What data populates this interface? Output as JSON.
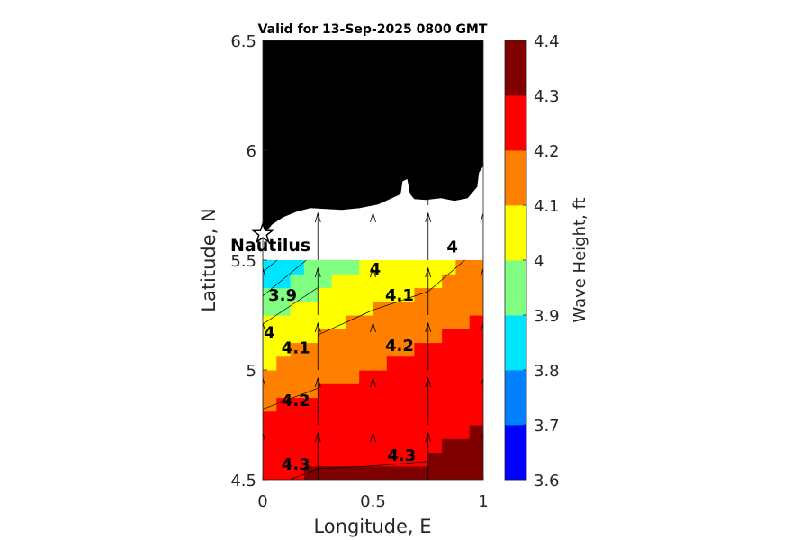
{
  "chart_data": {
    "type": "contour-map",
    "title": "Valid for 13-Sep-2025 0800 GMT",
    "xlabel": "Longitude, E",
    "ylabel": "Latitude, N",
    "xlim": [
      0,
      1
    ],
    "ylim": [
      4.5,
      6.5
    ],
    "x_ticks": [
      "0",
      "0.5",
      "1"
    ],
    "y_ticks": [
      "4.5",
      "5",
      "5.5",
      "6",
      "6.5"
    ],
    "colorbar": {
      "label": "Wave Height, ft",
      "levels": [
        3.6,
        3.7,
        3.8,
        3.9,
        4.0,
        4.1,
        4.2,
        4.3,
        4.4
      ],
      "tick_labels": [
        "3.6",
        "3.7",
        "3.8",
        "3.9",
        "4",
        "4.1",
        "4.2",
        "4.3",
        "4.4"
      ],
      "colors": [
        "#0000ff",
        "#0080ff",
        "#00e5ff",
        "#80ff80",
        "#ffff00",
        "#ff8000",
        "#ff0000",
        "#800000"
      ]
    },
    "grid_lon": [
      0,
      0.25,
      0.5,
      0.75,
      1
    ],
    "grid_lat": [
      4.5,
      4.75,
      5.0,
      5.25,
      5.5
    ],
    "wave_height": [
      [
        4.29,
        4.31,
        4.31,
        4.31,
        4.34
      ],
      [
        4.24,
        4.26,
        4.27,
        4.28,
        4.3
      ],
      [
        4.1,
        4.17,
        4.2,
        4.24,
        4.27
      ],
      [
        3.98,
        4.06,
        4.11,
        4.16,
        4.2
      ],
      [
        3.75,
        3.94,
        4.0,
        4.02,
        4.14
      ]
    ],
    "contour_labels": [
      {
        "text": "3.9",
        "lon": 0.09,
        "lat": 5.34
      },
      {
        "text": "4",
        "lon": 0.03,
        "lat": 5.17
      },
      {
        "text": "4",
        "lon": 0.51,
        "lat": 5.46
      },
      {
        "text": "4",
        "lon": 0.86,
        "lat": 5.56
      },
      {
        "text": "4.1",
        "lon": 0.15,
        "lat": 5.1
      },
      {
        "text": "4.1",
        "lon": 0.62,
        "lat": 5.34
      },
      {
        "text": "4.2",
        "lon": 0.15,
        "lat": 4.86
      },
      {
        "text": "4.2",
        "lon": 0.62,
        "lat": 5.11
      },
      {
        "text": "4.3",
        "lon": 0.15,
        "lat": 4.57
      },
      {
        "text": "4.3",
        "lon": 0.63,
        "lat": 4.61
      }
    ],
    "arrows": {
      "lon": [
        0,
        0.25,
        0.5,
        0.75,
        1
      ],
      "lat": [
        4.5,
        4.75,
        5.0,
        5.25,
        5.5
      ],
      "direction": "north",
      "upper_row_lat": 5.75
    },
    "land_color": "#000000",
    "place": {
      "name": "Nautilus",
      "lon": 0.0,
      "lat": 5.62
    }
  }
}
